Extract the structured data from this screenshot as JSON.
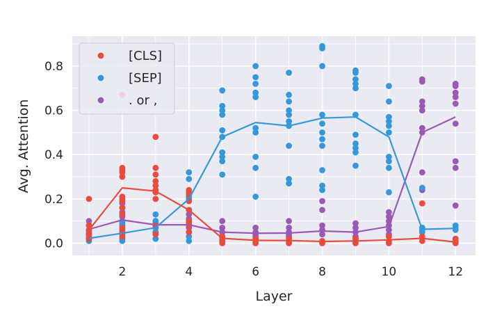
{
  "chart_data": {
    "type": "scatter",
    "xlabel": "Layer",
    "ylabel": "Avg. Attention",
    "xlim": [
      0.5,
      12.6
    ],
    "ylim": [
      -0.055,
      0.935
    ],
    "xticks": [
      2,
      4,
      6,
      8,
      10,
      12
    ],
    "yticks": [
      0.0,
      0.2,
      0.4,
      0.6,
      0.8
    ],
    "grid": true,
    "legend_position": "top-left",
    "series": [
      {
        "name": "[CLS]",
        "color": "#e74c3c",
        "mean_line": [
          {
            "x": 1,
            "y": 0.06
          },
          {
            "x": 2,
            "y": 0.25
          },
          {
            "x": 3,
            "y": 0.235
          },
          {
            "x": 4,
            "y": 0.15
          },
          {
            "x": 5,
            "y": 0.022
          },
          {
            "x": 6,
            "y": 0.013
          },
          {
            "x": 7,
            "y": 0.012
          },
          {
            "x": 8,
            "y": 0.008
          },
          {
            "x": 9,
            "y": 0.01
          },
          {
            "x": 10,
            "y": 0.015
          },
          {
            "x": 11,
            "y": 0.022
          },
          {
            "x": 12,
            "y": 0.005
          }
        ],
        "points": [
          [
            1,
            0.2
          ],
          [
            1,
            0.06
          ],
          [
            1,
            0.04
          ],
          [
            1,
            0.02
          ],
          [
            1,
            0.08
          ],
          [
            2,
            0.67
          ],
          [
            2,
            0.34
          ],
          [
            2,
            0.33
          ],
          [
            2,
            0.32
          ],
          [
            2,
            0.3
          ],
          [
            2,
            0.21
          ],
          [
            2,
            0.19
          ],
          [
            2,
            0.16
          ],
          [
            2,
            0.13
          ],
          [
            2,
            0.07
          ],
          [
            2,
            0.05
          ],
          [
            2,
            0.03
          ],
          [
            3,
            0.48
          ],
          [
            3,
            0.34
          ],
          [
            3,
            0.31
          ],
          [
            3,
            0.28
          ],
          [
            3,
            0.26
          ],
          [
            3,
            0.24
          ],
          [
            3,
            0.23
          ],
          [
            3,
            0.2
          ],
          [
            3,
            0.08
          ],
          [
            3,
            0.04
          ],
          [
            4,
            0.24
          ],
          [
            4,
            0.22
          ],
          [
            4,
            0.19
          ],
          [
            4,
            0.15
          ],
          [
            4,
            0.1
          ],
          [
            4,
            0.08
          ],
          [
            4,
            0.05
          ],
          [
            5,
            0.03
          ],
          [
            5,
            0.01
          ],
          [
            5,
            0.0
          ],
          [
            6,
            0.02
          ],
          [
            6,
            0.01
          ],
          [
            6,
            0.0
          ],
          [
            7,
            0.02
          ],
          [
            7,
            0.01
          ],
          [
            7,
            0.0
          ],
          [
            8,
            0.01
          ],
          [
            8,
            0.005
          ],
          [
            8,
            0.0
          ],
          [
            9,
            0.02
          ],
          [
            9,
            0.01
          ],
          [
            9,
            0.0
          ],
          [
            10,
            0.03
          ],
          [
            10,
            0.01
          ],
          [
            10,
            0.0
          ],
          [
            11,
            0.18
          ],
          [
            11,
            0.03
          ],
          [
            11,
            0.01
          ],
          [
            12,
            0.02
          ],
          [
            12,
            0.005
          ],
          [
            12,
            0.0
          ]
        ]
      },
      {
        "name": "[SEP]",
        "color": "#3498db",
        "mean_line": [
          {
            "x": 1,
            "y": 0.022
          },
          {
            "x": 2,
            "y": 0.045
          },
          {
            "x": 3,
            "y": 0.07
          },
          {
            "x": 4,
            "y": 0.2
          },
          {
            "x": 5,
            "y": 0.48
          },
          {
            "x": 6,
            "y": 0.545
          },
          {
            "x": 7,
            "y": 0.53
          },
          {
            "x": 8,
            "y": 0.565
          },
          {
            "x": 9,
            "y": 0.57
          },
          {
            "x": 10,
            "y": 0.48
          },
          {
            "x": 11,
            "y": 0.063
          },
          {
            "x": 12,
            "y": 0.067
          }
        ],
        "points": [
          [
            1,
            0.04
          ],
          [
            1,
            0.02
          ],
          [
            1,
            0.01
          ],
          [
            2,
            0.09
          ],
          [
            2,
            0.06
          ],
          [
            2,
            0.04
          ],
          [
            2,
            0.02
          ],
          [
            2,
            0.01
          ],
          [
            3,
            0.13
          ],
          [
            3,
            0.1
          ],
          [
            3,
            0.07
          ],
          [
            3,
            0.05
          ],
          [
            3,
            0.02
          ],
          [
            4,
            0.32
          ],
          [
            4,
            0.29
          ],
          [
            4,
            0.23
          ],
          [
            4,
            0.21
          ],
          [
            4,
            0.2
          ],
          [
            4,
            0.15
          ],
          [
            4,
            0.03
          ],
          [
            4,
            0.01
          ],
          [
            5,
            0.69
          ],
          [
            5,
            0.62
          ],
          [
            5,
            0.6
          ],
          [
            5,
            0.58
          ],
          [
            5,
            0.51
          ],
          [
            5,
            0.48
          ],
          [
            5,
            0.41
          ],
          [
            5,
            0.39
          ],
          [
            5,
            0.37
          ],
          [
            5,
            0.31
          ],
          [
            6,
            0.8
          ],
          [
            6,
            0.75
          ],
          [
            6,
            0.72
          ],
          [
            6,
            0.68
          ],
          [
            6,
            0.66
          ],
          [
            6,
            0.52
          ],
          [
            6,
            0.5
          ],
          [
            6,
            0.39
          ],
          [
            6,
            0.34
          ],
          [
            6,
            0.21
          ],
          [
            7,
            0.77
          ],
          [
            7,
            0.67
          ],
          [
            7,
            0.64
          ],
          [
            7,
            0.6
          ],
          [
            7,
            0.58
          ],
          [
            7,
            0.55
          ],
          [
            7,
            0.53
          ],
          [
            7,
            0.44
          ],
          [
            7,
            0.29
          ],
          [
            7,
            0.27
          ],
          [
            8,
            0.89
          ],
          [
            8,
            0.88
          ],
          [
            8,
            0.8
          ],
          [
            8,
            0.58
          ],
          [
            8,
            0.54
          ],
          [
            8,
            0.5
          ],
          [
            8,
            0.47
          ],
          [
            8,
            0.44
          ],
          [
            8,
            0.33
          ],
          [
            8,
            0.26
          ],
          [
            8,
            0.24
          ],
          [
            9,
            0.78
          ],
          [
            9,
            0.77
          ],
          [
            9,
            0.74
          ],
          [
            9,
            0.72
          ],
          [
            9,
            0.7
          ],
          [
            9,
            0.58
          ],
          [
            9,
            0.49
          ],
          [
            9,
            0.45
          ],
          [
            9,
            0.43
          ],
          [
            9,
            0.41
          ],
          [
            9,
            0.35
          ],
          [
            10,
            0.71
          ],
          [
            10,
            0.64
          ],
          [
            10,
            0.57
          ],
          [
            10,
            0.55
          ],
          [
            10,
            0.53
          ],
          [
            10,
            0.5
          ],
          [
            10,
            0.39
          ],
          [
            10,
            0.37
          ],
          [
            10,
            0.34
          ],
          [
            10,
            0.23
          ],
          [
            11,
            0.25
          ],
          [
            11,
            0.07
          ],
          [
            11,
            0.06
          ],
          [
            11,
            0.05
          ],
          [
            12,
            0.08
          ],
          [
            12,
            0.07
          ],
          [
            12,
            0.06
          ],
          [
            12,
            0.02
          ],
          [
            12,
            0.01
          ]
        ]
      },
      {
        "name": ". or ,",
        "color": "#9b59b6",
        "mean_line": [
          {
            "x": 1,
            "y": 0.063
          },
          {
            "x": 2,
            "y": 0.105
          },
          {
            "x": 3,
            "y": 0.083
          },
          {
            "x": 4,
            "y": 0.083
          },
          {
            "x": 5,
            "y": 0.05
          },
          {
            "x": 6,
            "y": 0.045
          },
          {
            "x": 7,
            "y": 0.046
          },
          {
            "x": 8,
            "y": 0.055
          },
          {
            "x": 9,
            "y": 0.05
          },
          {
            "x": 10,
            "y": 0.075
          },
          {
            "x": 11,
            "y": 0.5
          },
          {
            "x": 12,
            "y": 0.57
          }
        ],
        "points": [
          [
            1,
            0.1
          ],
          [
            1,
            0.08
          ],
          [
            1,
            0.06
          ],
          [
            1,
            0.05
          ],
          [
            1,
            0.04
          ],
          [
            1,
            0.03
          ],
          [
            1,
            0.02
          ],
          [
            2,
            0.2
          ],
          [
            2,
            0.18
          ],
          [
            2,
            0.16
          ],
          [
            2,
            0.14
          ],
          [
            2,
            0.12
          ],
          [
            2,
            0.1
          ],
          [
            2,
            0.08
          ],
          [
            2,
            0.06
          ],
          [
            3,
            0.1
          ],
          [
            3,
            0.09
          ],
          [
            3,
            0.07
          ],
          [
            3,
            0.05
          ],
          [
            4,
            0.13
          ],
          [
            4,
            0.11
          ],
          [
            4,
            0.09
          ],
          [
            4,
            0.07
          ],
          [
            4,
            0.05
          ],
          [
            5,
            0.1
          ],
          [
            5,
            0.07
          ],
          [
            5,
            0.05
          ],
          [
            5,
            0.03
          ],
          [
            5,
            0.02
          ],
          [
            6,
            0.07
          ],
          [
            6,
            0.05
          ],
          [
            6,
            0.04
          ],
          [
            6,
            0.03
          ],
          [
            6,
            0.02
          ],
          [
            7,
            0.1
          ],
          [
            7,
            0.07
          ],
          [
            7,
            0.05
          ],
          [
            7,
            0.04
          ],
          [
            7,
            0.03
          ],
          [
            8,
            0.19
          ],
          [
            8,
            0.15
          ],
          [
            8,
            0.08
          ],
          [
            8,
            0.06
          ],
          [
            8,
            0.04
          ],
          [
            9,
            0.09
          ],
          [
            9,
            0.07
          ],
          [
            9,
            0.05
          ],
          [
            9,
            0.03
          ],
          [
            9,
            0.02
          ],
          [
            10,
            0.14
          ],
          [
            10,
            0.12
          ],
          [
            10,
            0.1
          ],
          [
            10,
            0.08
          ],
          [
            10,
            0.06
          ],
          [
            10,
            0.04
          ],
          [
            11,
            0.74
          ],
          [
            11,
            0.73
          ],
          [
            11,
            0.64
          ],
          [
            11,
            0.62
          ],
          [
            11,
            0.6
          ],
          [
            11,
            0.52
          ],
          [
            11,
            0.5
          ],
          [
            11,
            0.32
          ],
          [
            11,
            0.24
          ],
          [
            12,
            0.72
          ],
          [
            12,
            0.71
          ],
          [
            12,
            0.68
          ],
          [
            12,
            0.66
          ],
          [
            12,
            0.63
          ],
          [
            12,
            0.54
          ],
          [
            12,
            0.37
          ],
          [
            12,
            0.34
          ],
          [
            12,
            0.17
          ]
        ]
      }
    ]
  }
}
